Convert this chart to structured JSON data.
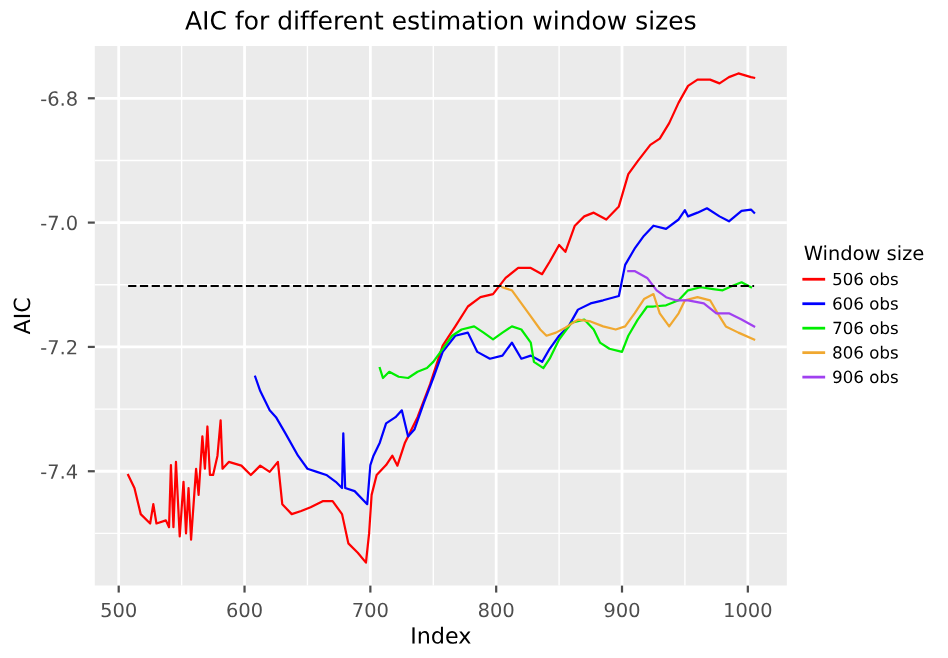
{
  "chart_data": {
    "type": "line",
    "title": "AIC for different estimation window sizes",
    "xlabel": "Index",
    "ylabel": "AIC",
    "legend_title": "Window size",
    "legend": "right",
    "grid": true,
    "line_style": "solid",
    "xlim": [
      481,
      1031
    ],
    "ylim": [
      -7.584,
      -6.716
    ],
    "xticks": [
      500,
      600,
      700,
      800,
      900,
      1000
    ],
    "yticks": [
      {
        "value": -6.8,
        "label": "-6.8"
      },
      {
        "value": -7.0,
        "label": "-7.0"
      },
      {
        "value": -7.2,
        "label": "-7.2"
      },
      {
        "value": -7.4,
        "label": "-7.4"
      }
    ],
    "ref_lines": [
      {
        "axis": "y",
        "value": -7.102,
        "label": null,
        "color": "#000000",
        "line_style": "dashed"
      }
    ],
    "series": [
      {
        "name": "506 obs",
        "color": "#ff0000",
        "x": [
          507.5,
          512.5,
          517.5,
          525,
          527.5,
          530,
          537.5,
          540,
          541.5,
          543.5,
          545.5,
          548.5,
          551.5,
          553.5,
          555.5,
          557.5,
          561.5,
          563.5,
          566.5,
          568.5,
          570.5,
          572.5,
          575,
          578.5,
          581,
          582.5,
          587.5,
          597.5,
          605,
          612.5,
          620,
          626.5,
          630,
          637.5,
          645,
          652.5,
          662.5,
          670,
          677.5,
          682.5,
          690,
          696.5,
          699,
          701,
          705,
          712.5,
          717.5,
          721.5,
          727.5,
          737.5,
          747.5,
          757.5,
          767.5,
          777.5,
          787.5,
          797.5,
          807.5,
          817.5,
          827.5,
          836.5,
          842.5,
          850,
          855,
          862.5,
          870,
          877.5,
          887.5,
          897.5,
          905,
          912.5,
          922.5,
          930,
          937.5,
          945,
          952.5,
          960,
          970,
          977.5,
          985,
          992.5,
          1002.5,
          1005
        ],
        "values": [
          -7.406,
          -7.427,
          -7.469,
          -7.484,
          -7.453,
          -7.484,
          -7.479,
          -7.49,
          -7.39,
          -7.49,
          -7.385,
          -7.505,
          -7.417,
          -7.5,
          -7.427,
          -7.51,
          -7.396,
          -7.438,
          -7.344,
          -7.396,
          -7.328,
          -7.406,
          -7.406,
          -7.375,
          -7.318,
          -7.396,
          -7.385,
          -7.391,
          -7.406,
          -7.391,
          -7.401,
          -7.385,
          -7.453,
          -7.469,
          -7.464,
          -7.458,
          -7.448,
          -7.448,
          -7.469,
          -7.516,
          -7.531,
          -7.547,
          -7.5,
          -7.438,
          -7.406,
          -7.39,
          -7.375,
          -7.391,
          -7.354,
          -7.313,
          -7.26,
          -7.198,
          -7.167,
          -7.135,
          -7.12,
          -7.115,
          -7.089,
          -7.073,
          -7.073,
          -7.083,
          -7.063,
          -7.036,
          -7.047,
          -7.005,
          -6.99,
          -6.984,
          -6.995,
          -6.974,
          -6.922,
          -6.901,
          -6.875,
          -6.865,
          -6.84,
          -6.807,
          -6.78,
          -6.77,
          -6.77,
          -6.776,
          -6.766,
          -6.76,
          -6.766,
          -6.767
        ]
      },
      {
        "name": "606 obs",
        "color": "#0000ff",
        "x": [
          608.5,
          612.5,
          620,
          625,
          632.5,
          642.5,
          650,
          657.5,
          665,
          672.5,
          677.5,
          678.5,
          680,
          687.5,
          697.5,
          700,
          702.5,
          707.5,
          712.5,
          720,
          725,
          730,
          735,
          742.5,
          750,
          757.5,
          767.5,
          777.5,
          785,
          795,
          805,
          812.5,
          820,
          827.5,
          836.5,
          842.5,
          850,
          857.5,
          865,
          875,
          885,
          897.5,
          902.5,
          910,
          917.5,
          925,
          935,
          945,
          950,
          952.5,
          960,
          967.5,
          977.5,
          985,
          995,
          1002.5,
          1005
        ],
        "values": [
          -7.248,
          -7.271,
          -7.302,
          -7.313,
          -7.339,
          -7.375,
          -7.396,
          -7.401,
          -7.406,
          -7.417,
          -7.427,
          -7.339,
          -7.427,
          -7.432,
          -7.453,
          -7.39,
          -7.375,
          -7.354,
          -7.323,
          -7.313,
          -7.302,
          -7.344,
          -7.333,
          -7.29,
          -7.25,
          -7.208,
          -7.182,
          -7.177,
          -7.208,
          -7.219,
          -7.214,
          -7.193,
          -7.219,
          -7.214,
          -7.224,
          -7.203,
          -7.182,
          -7.167,
          -7.14,
          -7.13,
          -7.125,
          -7.118,
          -7.068,
          -7.042,
          -7.021,
          -7.005,
          -7.01,
          -6.995,
          -6.98,
          -6.99,
          -6.984,
          -6.977,
          -6.99,
          -6.998,
          -6.981,
          -6.979,
          -6.984
        ]
      },
      {
        "name": "706 obs",
        "color": "#00ee00",
        "x": [
          707.5,
          710,
          715,
          722.5,
          730,
          737.5,
          745,
          750,
          757.5,
          765,
          772.5,
          782.5,
          790,
          797.5,
          805,
          812.5,
          820,
          827.5,
          830,
          837.5,
          842.5,
          850,
          860,
          870,
          877.5,
          882.5,
          890,
          900,
          905,
          912.5,
          920,
          925,
          935,
          945,
          952.5,
          962.5,
          972.5,
          980,
          987.5,
          995,
          1002.5
        ],
        "values": [
          -7.234,
          -7.25,
          -7.24,
          -7.248,
          -7.25,
          -7.24,
          -7.234,
          -7.224,
          -7.203,
          -7.182,
          -7.172,
          -7.167,
          -7.177,
          -7.188,
          -7.177,
          -7.167,
          -7.172,
          -7.193,
          -7.224,
          -7.234,
          -7.219,
          -7.188,
          -7.161,
          -7.156,
          -7.172,
          -7.193,
          -7.203,
          -7.208,
          -7.182,
          -7.156,
          -7.135,
          -7.135,
          -7.133,
          -7.125,
          -7.109,
          -7.104,
          -7.107,
          -7.109,
          -7.102,
          -7.096,
          -7.104
        ]
      },
      {
        "name": "806 obs",
        "color": "#f0a830",
        "x": [
          805,
          812.5,
          820,
          827.5,
          835,
          840,
          847.5,
          855,
          865,
          875,
          885,
          895,
          902.5,
          910,
          917.5,
          925,
          930,
          937.5,
          945,
          950,
          960,
          970,
          977.5,
          982.5,
          992.5,
          1005
        ],
        "values": [
          -7.104,
          -7.109,
          -7.13,
          -7.151,
          -7.172,
          -7.182,
          -7.177,
          -7.169,
          -7.156,
          -7.159,
          -7.167,
          -7.172,
          -7.167,
          -7.146,
          -7.123,
          -7.115,
          -7.146,
          -7.167,
          -7.146,
          -7.125,
          -7.12,
          -7.125,
          -7.151,
          -7.167,
          -7.177,
          -7.188
        ]
      },
      {
        "name": "906 obs",
        "color": "#a040f0",
        "x": [
          905,
          910,
          920,
          927.5,
          935,
          942.5,
          952.5,
          965,
          975,
          985,
          995,
          1005
        ],
        "values": [
          -7.078,
          -7.078,
          -7.089,
          -7.109,
          -7.12,
          -7.125,
          -7.125,
          -7.13,
          -7.146,
          -7.146,
          -7.156,
          -7.167
        ]
      }
    ]
  }
}
